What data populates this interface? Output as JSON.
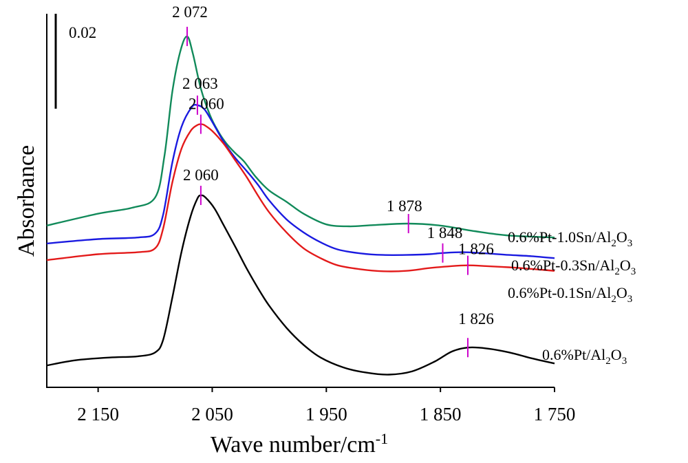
{
  "chart_data": {
    "type": "line",
    "xlabel": "Wave number/cm",
    "xlabel_sup": "-1",
    "ylabel": "Absorbance",
    "x_reversed": true,
    "xlim": [
      2195,
      1750
    ],
    "ylim": [
      0,
      0.094
    ],
    "x_ticks": [
      {
        "value": 2150,
        "label": "2 150"
      },
      {
        "value": 2050,
        "label": "2 050"
      },
      {
        "value": 1950,
        "label": "1 950"
      },
      {
        "value": 1850,
        "label": "1 850"
      },
      {
        "value": 1750,
        "label": "1 750"
      }
    ],
    "scale_bar": {
      "label": "0.02",
      "value": 0.02
    },
    "grid": false,
    "series": [
      {
        "name": "0.6%Pt-1.0Sn/Al2O3",
        "label_parts": [
          "0.6%Pt-1.0Sn/Al",
          "2",
          "O",
          "3"
        ],
        "color": "#118a5a",
        "x": [
          2195,
          2150,
          2120,
          2100,
          2092,
          2085,
          2078,
          2072,
          2067,
          2060,
          2052,
          2045,
          2038,
          2030,
          2022,
          2012,
          2000,
          1985,
          1970,
          1950,
          1930,
          1910,
          1878,
          1850,
          1820,
          1790,
          1750
        ],
        "y": [
          0.0407,
          0.0437,
          0.0452,
          0.0478,
          0.058,
          0.0743,
          0.0845,
          0.0883,
          0.084,
          0.0752,
          0.0685,
          0.0645,
          0.0615,
          0.059,
          0.0568,
          0.053,
          0.0495,
          0.0467,
          0.0437,
          0.041,
          0.0405,
          0.0408,
          0.0412,
          0.0407,
          0.0393,
          0.0382,
          0.0377
        ]
      },
      {
        "name": "0.6%Pt-0.3Sn/Al2O3",
        "label_parts": [
          "0.6%Pt-0.3Sn/Al",
          "2",
          "O",
          "3"
        ],
        "color": "#1a1ae0",
        "x": [
          2195,
          2150,
          2115,
          2100,
          2093,
          2085,
          2077,
          2068,
          2063,
          2057,
          2050,
          2040,
          2030,
          2020,
          2010,
          2000,
          1985,
          1970,
          1955,
          1940,
          1920,
          1900,
          1880,
          1860,
          1848,
          1830,
          1810,
          1790,
          1770,
          1750
        ],
        "y": [
          0.0362,
          0.0373,
          0.0377,
          0.0387,
          0.0435,
          0.0565,
          0.0655,
          0.0705,
          0.071,
          0.07,
          0.0668,
          0.0618,
          0.0578,
          0.0545,
          0.051,
          0.047,
          0.0423,
          0.039,
          0.0365,
          0.0347,
          0.0337,
          0.0333,
          0.0333,
          0.0335,
          0.0338,
          0.034,
          0.0337,
          0.0333,
          0.033,
          0.0325
        ]
      },
      {
        "name": "0.6%Pt-0.1Sn/Al2O3",
        "label_parts": [
          "0.6%Pt-0.1Sn/Al",
          "2",
          "O",
          "3"
        ],
        "color": "#e31a1a",
        "x": [
          2195,
          2150,
          2115,
          2100,
          2093,
          2085,
          2077,
          2069,
          2063,
          2060,
          2057,
          2050,
          2040,
          2030,
          2020,
          2010,
          2000,
          1985,
          1970,
          1955,
          1940,
          1920,
          1900,
          1880,
          1860,
          1840,
          1826,
          1810,
          1790,
          1770,
          1750
        ],
        "y": [
          0.032,
          0.0335,
          0.034,
          0.035,
          0.04,
          0.0515,
          0.06,
          0.0645,
          0.066,
          0.0662,
          0.066,
          0.0645,
          0.0613,
          0.0572,
          0.053,
          0.0483,
          0.044,
          0.039,
          0.035,
          0.0325,
          0.0307,
          0.0297,
          0.0292,
          0.0293,
          0.03,
          0.0305,
          0.0307,
          0.0305,
          0.0302,
          0.0298,
          0.0293
        ]
      },
      {
        "name": "0.6%Pt/Al2O3",
        "label_parts": [
          "0.6%Pt/Al",
          "2",
          "O",
          "3"
        ],
        "color": "#000000",
        "x": [
          2195,
          2170,
          2140,
          2115,
          2100,
          2093,
          2085,
          2077,
          2069,
          2063,
          2060,
          2056,
          2048,
          2040,
          2030,
          2020,
          2010,
          2000,
          1985,
          1970,
          1955,
          1935,
          1915,
          1895,
          1875,
          1855,
          1840,
          1826,
          1810,
          1790,
          1770,
          1750
        ],
        "y": [
          0.0055,
          0.0068,
          0.0075,
          0.0078,
          0.0088,
          0.012,
          0.0225,
          0.034,
          0.043,
          0.0475,
          0.0483,
          0.0478,
          0.045,
          0.0408,
          0.0355,
          0.03,
          0.025,
          0.0205,
          0.015,
          0.0107,
          0.0075,
          0.005,
          0.0037,
          0.0032,
          0.004,
          0.0065,
          0.009,
          0.01,
          0.0098,
          0.0088,
          0.0073,
          0.006
        ]
      }
    ],
    "peak_annotations": [
      {
        "series": 0,
        "x": 2072,
        "label": "2 072"
      },
      {
        "series": 1,
        "x": 2063,
        "label": "2 063"
      },
      {
        "series": 2,
        "x": 2060,
        "label": "2 060"
      },
      {
        "series": 3,
        "x": 2060,
        "label": "2 060"
      },
      {
        "series": 0,
        "x": 1878,
        "label": "1 878"
      },
      {
        "series": 1,
        "x": 1848,
        "label": "1 848"
      },
      {
        "series": 2,
        "x": 1826,
        "label": "1 826"
      },
      {
        "series": 3,
        "x": 1826,
        "label": "1 826"
      }
    ],
    "annotation_color": "#cc00cc"
  }
}
